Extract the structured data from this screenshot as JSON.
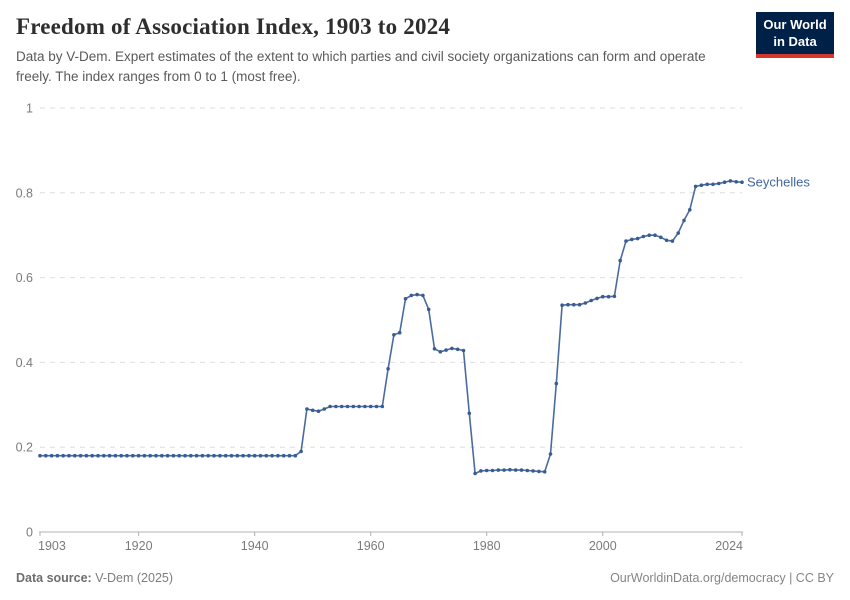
{
  "header": {
    "title": "Freedom of Association Index, 1903 to 2024",
    "subtitle": "Data by V-Dem. Expert estimates of the extent to which parties and civil society organizations can form and operate freely. The index ranges from 0 to 1 (most free).",
    "logo": {
      "line1": "Our World",
      "line2": "in Data"
    }
  },
  "footer": {
    "source_label": "Data source:",
    "source_value": " V-Dem (2025)",
    "link_text": "OurWorldinData.org/democracy | CC BY"
  },
  "colors": {
    "line": "#4a6ba0",
    "marker": "#3a5c94",
    "label": "#4265a0",
    "grid": "#dddddd",
    "axis_line": "#b0b0b0",
    "axis_text": "#7b7b7b",
    "logo_bg": "#002147",
    "logo_red": "#d3372d"
  },
  "chart_data": {
    "type": "line",
    "title": "Freedom of Association Index, 1903 to 2024",
    "xlabel": "",
    "ylabel": "",
    "xlim": [
      1903,
      2024
    ],
    "ylim": [
      0,
      1
    ],
    "x_ticks": [
      1903,
      1920,
      1940,
      1960,
      1980,
      2000,
      2024
    ],
    "y_ticks": [
      0,
      0.2,
      0.4,
      0.6,
      0.8,
      1
    ],
    "grid": "horizontal dashed",
    "legend_position": "end-of-line entity label",
    "series": [
      {
        "name": "Seychelles",
        "year_start": 1903,
        "year_end": 2024,
        "values": [
          0.18,
          0.18,
          0.18,
          0.18,
          0.18,
          0.18,
          0.18,
          0.18,
          0.18,
          0.18,
          0.18,
          0.18,
          0.18,
          0.18,
          0.18,
          0.18,
          0.18,
          0.18,
          0.18,
          0.18,
          0.18,
          0.18,
          0.18,
          0.18,
          0.18,
          0.18,
          0.18,
          0.18,
          0.18,
          0.18,
          0.18,
          0.18,
          0.18,
          0.18,
          0.18,
          0.18,
          0.18,
          0.18,
          0.18,
          0.18,
          0.18,
          0.18,
          0.18,
          0.18,
          0.18,
          0.19,
          0.29,
          0.287,
          0.285,
          0.29,
          0.296,
          0.296,
          0.296,
          0.296,
          0.296,
          0.296,
          0.296,
          0.296,
          0.296,
          0.296,
          0.385,
          0.465,
          0.47,
          0.55,
          0.558,
          0.56,
          0.558,
          0.525,
          0.432,
          0.425,
          0.429,
          0.433,
          0.431,
          0.428,
          0.28,
          0.138,
          0.144,
          0.145,
          0.145,
          0.146,
          0.146,
          0.147,
          0.146,
          0.146,
          0.145,
          0.144,
          0.143,
          0.142,
          0.184,
          0.35,
          0.535,
          0.536,
          0.536,
          0.536,
          0.54,
          0.546,
          0.551,
          0.555,
          0.555,
          0.556,
          0.64,
          0.686,
          0.69,
          0.692,
          0.697,
          0.7,
          0.7,
          0.695,
          0.688,
          0.686,
          0.705,
          0.735,
          0.76,
          0.815,
          0.818,
          0.82,
          0.82,
          0.822,
          0.825,
          0.828,
          0.826,
          0.825
        ]
      }
    ]
  }
}
